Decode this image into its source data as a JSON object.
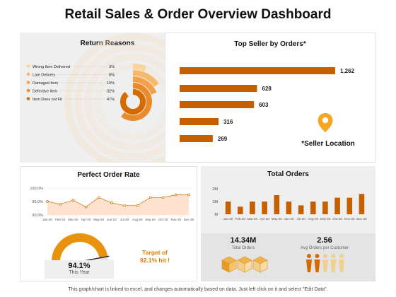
{
  "title": "Retail Sales & Order Overview Dashboard",
  "footer": "This graph/chart is linked to excel, and changes automatically based on data. Just left click on it and select \"Edit Data\".",
  "colors": {
    "accent": "#d46a00",
    "accent_light": "#f0a24a",
    "gold": "#f6a623",
    "panel_gray": "#efefef"
  },
  "panels": {
    "return_reasons": {
      "title": "Return Reasons"
    },
    "top_seller": {
      "title": "Top Seller by Orders*",
      "location_label": "*Seller Location",
      "icon": "map-pin-icon"
    },
    "perfect_order": {
      "title": "Perfect Order Rate",
      "gauge_value": "94.1%",
      "gauge_caption": "This Year",
      "gauge_fraction": 0.941,
      "target_line1": "Target of",
      "target_line2": "92.1% hit !"
    },
    "total_orders": {
      "title": "Total Orders",
      "kpi1_value": "14.34M",
      "kpi1_label": "Total Orders",
      "kpi1_icon": "boxes-icon",
      "kpi2_value": "2.56",
      "kpi2_label": "Avg Orders per Customer",
      "kpi2_icon": "people-icon"
    }
  },
  "chart_data": [
    {
      "type": "radial-bar",
      "name": "Return Reasons",
      "categories": [
        "Wrong Item Delivered",
        "Late Delivery",
        "Damaged Item",
        "Defective Item",
        "Item Does not Fit"
      ],
      "labels": [
        "3%",
        "8%",
        "10%",
        "32%",
        "47%"
      ],
      "values": [
        3,
        8,
        10,
        32,
        47
      ],
      "colors": [
        "#f8d39a",
        "#f6b96a",
        "#f3a04a",
        "#ea8a2a",
        "#d46a00"
      ]
    },
    {
      "type": "bar",
      "orientation": "horizontal",
      "name": "Top Seller by Orders*",
      "values": [
        1262,
        628,
        603,
        316,
        269
      ],
      "labels": [
        "1,262",
        "628",
        "603",
        "316",
        "269"
      ],
      "xlim": [
        0,
        1262
      ]
    },
    {
      "type": "area",
      "name": "Perfect Order Rate",
      "categories": [
        "Jan-20",
        "Feb-20",
        "Mar-20",
        "Apr-20",
        "May-20",
        "Jun-20",
        "Jul-20",
        "Aug-20",
        "Sep-20",
        "Oct-20",
        "Nov-20",
        "Dec-20"
      ],
      "values": [
        95.0,
        94.0,
        95.5,
        93.0,
        96.5,
        94.5,
        93.5,
        93.5,
        96.5,
        96.5,
        97.5,
        97.5
      ],
      "yticks": [
        "100.0%",
        "95.0%",
        "90.0%"
      ],
      "ylim": [
        90,
        100
      ],
      "grid": true
    },
    {
      "type": "bar",
      "name": "Total Orders",
      "categories": [
        "Jan-20",
        "Feb-20",
        "Mar-20",
        "Apr-20",
        "May-20",
        "Jun-20",
        "Jul-20",
        "Aug-20",
        "Sep-20",
        "Oct-20",
        "Nov-20",
        "Dec-20"
      ],
      "values": [
        1.0,
        0.6,
        1.0,
        1.0,
        1.5,
        1.0,
        0.7,
        1.0,
        1.0,
        1.3,
        1.3,
        1.6
      ],
      "yticks": [
        "2M",
        "1M",
        "M"
      ],
      "ylim": [
        0,
        2
      ]
    }
  ]
}
